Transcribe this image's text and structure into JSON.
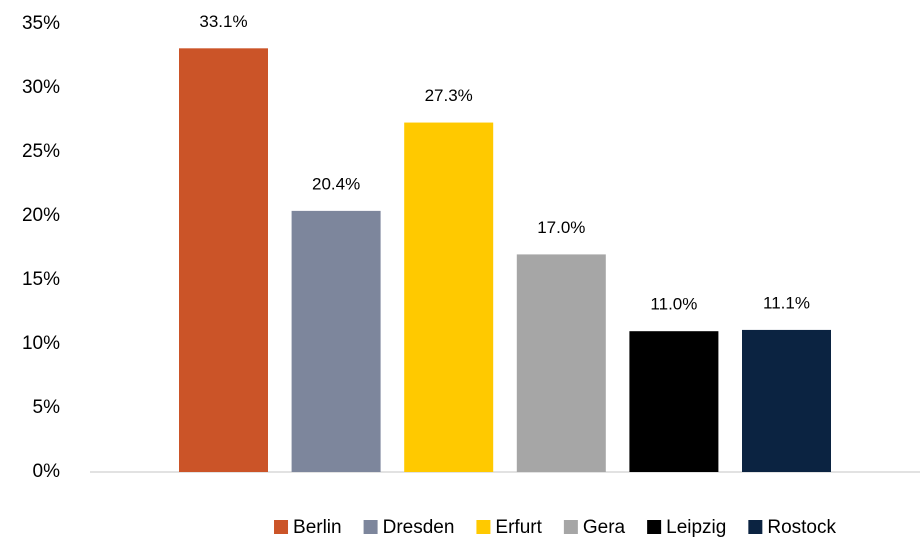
{
  "chart_data": {
    "type": "bar",
    "categories": [
      null
    ],
    "series": [
      {
        "name": "Berlin",
        "color": "#cb5428",
        "values": [
          33.1
        ],
        "value_labels": [
          "33.1%"
        ]
      },
      {
        "name": "Dresden",
        "color": "#7d869c",
        "values": [
          20.4
        ],
        "value_labels": [
          "20.4%"
        ]
      },
      {
        "name": "Erfurt",
        "color": "#ffc900",
        "values": [
          27.3
        ],
        "value_labels": [
          "27.3%"
        ]
      },
      {
        "name": "Gera",
        "color": "#a6a6a6",
        "values": [
          17.0
        ],
        "value_labels": [
          "17.0%"
        ]
      },
      {
        "name": "Leipzig",
        "color": "#000000",
        "values": [
          11.0
        ],
        "value_labels": [
          "11.0%"
        ]
      },
      {
        "name": "Rostock",
        "color": "#0b2341",
        "values": [
          11.1
        ],
        "value_labels": [
          "11.1%"
        ]
      }
    ],
    "ylim": [
      0,
      35
    ],
    "yticks": [
      {
        "value": 0,
        "label": "0%"
      },
      {
        "value": 5,
        "label": "5%"
      },
      {
        "value": 10,
        "label": "10%"
      },
      {
        "value": 15,
        "label": "15%"
      },
      {
        "value": 20,
        "label": "20%"
      },
      {
        "value": 25,
        "label": "25%"
      },
      {
        "value": 30,
        "label": "30%"
      },
      {
        "value": 35,
        "label": "35%"
      }
    ],
    "grid": false,
    "legend": "bottom"
  }
}
